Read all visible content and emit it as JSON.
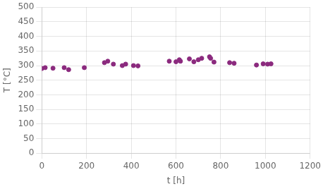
{
  "chart_data": {
    "type": "scatter",
    "x": [
      0,
      15,
      50,
      100,
      120,
      190,
      280,
      295,
      320,
      360,
      375,
      410,
      430,
      570,
      600,
      615,
      620,
      660,
      680,
      700,
      715,
      750,
      755,
      770,
      840,
      860,
      960,
      990,
      1010,
      1025
    ],
    "y": [
      290,
      293,
      291,
      293,
      286,
      293,
      310,
      315,
      305,
      300,
      305,
      300,
      299,
      315,
      313,
      320,
      315,
      323,
      313,
      320,
      325,
      330,
      325,
      312,
      310,
      308,
      302,
      306,
      305,
      306
    ],
    "color": "#8B2A7E",
    "xlabel": "t [h]",
    "ylabel": "T [°C]",
    "xlim": [
      0,
      1200
    ],
    "ylim": [
      0,
      500
    ],
    "xticks": [
      0,
      200,
      400,
      600,
      800,
      1000,
      1200
    ],
    "yticks": [
      0,
      50,
      100,
      150,
      200,
      250,
      300,
      350,
      400,
      450,
      500
    ],
    "grid": true
  }
}
